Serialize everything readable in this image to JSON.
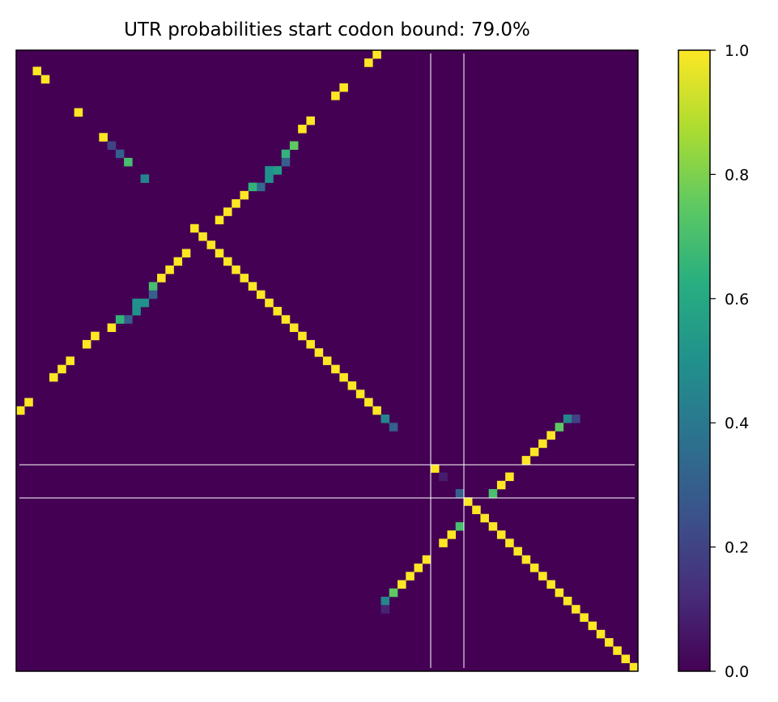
{
  "chart_data": {
    "type": "heatmap",
    "title": "UTR probabilities start codon bound: 79.0%",
    "colormap": "viridis",
    "clim": [
      0,
      1
    ],
    "cticks": [
      {
        "value": 0,
        "label": "0.0"
      },
      0.2,
      0.4,
      0.6,
      0.8,
      {
        "value": 1,
        "label": "1.0"
      }
    ],
    "cells": [
      [
        2,
        2,
        1
      ],
      [
        3,
        3,
        1
      ],
      [
        7,
        7,
        1
      ],
      [
        10,
        10,
        1
      ],
      [
        11,
        11,
        0.2
      ],
      [
        12,
        12,
        0.3
      ],
      [
        13,
        13,
        0.7
      ],
      [
        15,
        15,
        0.45
      ],
      [
        0,
        43,
        1
      ],
      [
        1,
        42,
        1
      ],
      [
        4,
        39,
        1
      ],
      [
        5,
        38,
        1
      ],
      [
        8,
        35,
        1
      ],
      [
        9,
        34,
        1
      ],
      [
        11,
        33,
        0.75
      ],
      [
        12,
        32,
        0.65
      ],
      [
        13,
        32,
        0.3
      ],
      [
        14,
        31,
        0.55
      ],
      [
        14,
        30,
        0.5
      ],
      [
        15,
        30,
        0.5
      ],
      [
        16,
        29,
        0.35
      ],
      [
        16,
        28,
        0.65
      ],
      [
        17,
        27,
        1
      ],
      [
        18,
        26,
        1
      ],
      [
        19,
        25,
        1
      ],
      [
        20,
        24,
        1
      ],
      [
        24,
        20,
        1
      ],
      [
        25,
        19,
        1
      ],
      [
        26,
        18,
        1
      ],
      [
        27,
        17,
        1
      ],
      [
        28,
        16,
        0.7
      ],
      [
        29,
        16,
        0.3
      ],
      [
        30,
        15,
        0.5
      ],
      [
        30,
        14,
        0.5
      ],
      [
        31,
        14,
        0.5
      ],
      [
        32,
        13,
        0.3
      ],
      [
        32,
        12,
        0.65
      ],
      [
        33,
        11,
        1
      ],
      [
        34,
        9,
        1
      ],
      [
        35,
        8,
        1
      ],
      [
        37,
        6,
        1
      ],
      [
        38,
        5,
        1
      ],
      [
        39,
        4,
        1
      ],
      [
        42,
        1,
        1
      ],
      [
        43,
        0,
        1
      ],
      [
        21,
        21,
        1
      ],
      [
        22,
        22,
        1
      ],
      [
        23,
        23,
        1
      ],
      [
        24,
        24,
        1
      ],
      [
        25,
        25,
        1
      ],
      [
        26,
        26,
        1
      ],
      [
        27,
        27,
        1
      ],
      [
        28,
        28,
        1
      ],
      [
        29,
        29,
        1
      ],
      [
        30,
        30,
        1
      ],
      [
        31,
        31,
        1
      ],
      [
        32,
        32,
        1
      ],
      [
        33,
        33,
        1
      ],
      [
        34,
        34,
        1
      ],
      [
        35,
        35,
        1
      ],
      [
        36,
        36,
        1
      ],
      [
        37,
        37,
        1
      ],
      [
        38,
        38,
        1
      ],
      [
        39,
        39,
        1
      ],
      [
        40,
        40,
        1
      ],
      [
        41,
        41,
        1
      ],
      [
        42,
        42,
        1
      ],
      [
        43,
        43,
        1
      ],
      [
        44,
        44,
        0.45
      ],
      [
        45,
        45,
        0.3
      ],
      [
        50,
        50,
        1
      ],
      [
        51,
        51,
        0.08
      ],
      [
        53,
        53,
        0.3
      ],
      [
        54,
        54,
        1
      ],
      [
        55,
        55,
        1
      ],
      [
        56,
        56,
        1
      ],
      [
        57,
        57,
        1
      ],
      [
        58,
        58,
        1
      ],
      [
        59,
        59,
        1
      ],
      [
        60,
        60,
        1
      ],
      [
        61,
        61,
        1
      ],
      [
        62,
        62,
        1
      ],
      [
        63,
        63,
        1
      ],
      [
        64,
        64,
        1
      ],
      [
        65,
        65,
        1
      ],
      [
        66,
        66,
        1
      ],
      [
        67,
        67,
        1
      ],
      [
        68,
        68,
        1
      ],
      [
        69,
        69,
        1
      ],
      [
        70,
        70,
        1
      ],
      [
        71,
        71,
        1
      ],
      [
        72,
        72,
        1
      ],
      [
        73,
        73,
        1
      ],
      [
        74,
        74,
        1
      ],
      [
        44,
        66,
        0.45
      ],
      [
        44,
        67,
        0.2
      ],
      [
        45,
        65,
        0.75
      ],
      [
        46,
        64,
        1
      ],
      [
        47,
        63,
        1
      ],
      [
        48,
        62,
        1
      ],
      [
        49,
        61,
        1
      ],
      [
        51,
        59,
        1
      ],
      [
        52,
        58,
        1
      ],
      [
        53,
        57,
        0.7
      ],
      [
        57,
        53,
        0.7
      ],
      [
        58,
        52,
        1
      ],
      [
        59,
        51,
        1
      ],
      [
        61,
        49,
        1
      ],
      [
        62,
        48,
        1
      ],
      [
        63,
        47,
        1
      ],
      [
        64,
        46,
        1
      ],
      [
        65,
        45,
        0.75
      ],
      [
        66,
        44,
        0.45
      ],
      [
        67,
        44,
        0.1
      ]
    ]
  }
}
